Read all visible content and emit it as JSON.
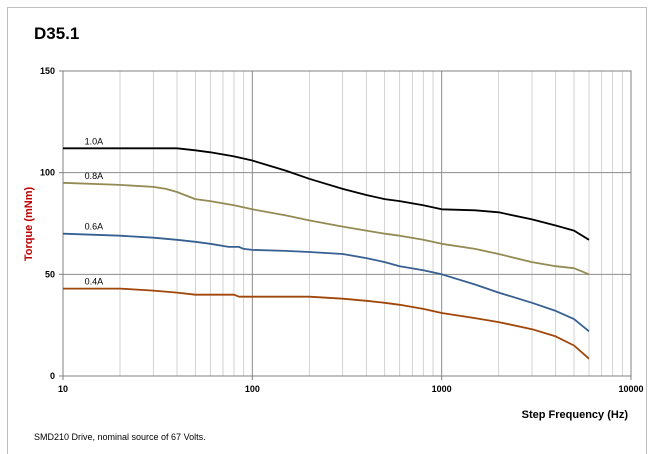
{
  "page_title": "D35.1",
  "footnote": "SMD210  Drive, nominal source of 67 Volts.",
  "chart_data": {
    "type": "line",
    "title": "",
    "xlabel": "Step Frequency (Hz)",
    "ylabel": "Torque (mNm)",
    "xscale": "log",
    "xlim": [
      10,
      10000
    ],
    "ylim": [
      0,
      150
    ],
    "x_ticks": [
      "10",
      "100",
      "1000",
      "10000"
    ],
    "y_ticks": [
      "0",
      "50",
      "100",
      "150"
    ],
    "grid": true,
    "legend": "none",
    "series": [
      {
        "name": "1.0A",
        "color": "#000000",
        "points": [
          [
            10,
            112
          ],
          [
            20,
            112
          ],
          [
            30,
            112
          ],
          [
            40,
            112
          ],
          [
            50,
            111
          ],
          [
            60,
            110
          ],
          [
            80,
            108
          ],
          [
            100,
            106
          ],
          [
            150,
            101
          ],
          [
            200,
            97
          ],
          [
            300,
            92
          ],
          [
            400,
            89
          ],
          [
            500,
            87
          ],
          [
            600,
            86
          ],
          [
            800,
            84
          ],
          [
            1000,
            82
          ],
          [
            1500,
            81.5
          ],
          [
            2000,
            80.5
          ],
          [
            3000,
            77
          ],
          [
            4000,
            74
          ],
          [
            5000,
            71.5
          ],
          [
            6000,
            67
          ]
        ]
      },
      {
        "name": "0.8A",
        "color": "#948a54",
        "points": [
          [
            10,
            95
          ],
          [
            20,
            94
          ],
          [
            30,
            93
          ],
          [
            35,
            92
          ],
          [
            40,
            90.5
          ],
          [
            50,
            87
          ],
          [
            60,
            86
          ],
          [
            80,
            84
          ],
          [
            100,
            82
          ],
          [
            150,
            79
          ],
          [
            200,
            76.5
          ],
          [
            300,
            73.5
          ],
          [
            400,
            71.5
          ],
          [
            500,
            70
          ],
          [
            600,
            69
          ],
          [
            800,
            67
          ],
          [
            1000,
            65
          ],
          [
            1500,
            62.5
          ],
          [
            2000,
            60
          ],
          [
            3000,
            56
          ],
          [
            4000,
            54
          ],
          [
            5000,
            53
          ],
          [
            6000,
            50
          ]
        ]
      },
      {
        "name": "0.6A",
        "color": "#376092",
        "points": [
          [
            10,
            70
          ],
          [
            20,
            69
          ],
          [
            30,
            68
          ],
          [
            40,
            67
          ],
          [
            50,
            66
          ],
          [
            60,
            65
          ],
          [
            75,
            63.5
          ],
          [
            85,
            63.5
          ],
          [
            90,
            62.5
          ],
          [
            100,
            62
          ],
          [
            150,
            61.5
          ],
          [
            200,
            61
          ],
          [
            300,
            60
          ],
          [
            400,
            58
          ],
          [
            500,
            56
          ],
          [
            600,
            54
          ],
          [
            800,
            52
          ],
          [
            1000,
            50
          ],
          [
            1500,
            45
          ],
          [
            2000,
            41
          ],
          [
            3000,
            36
          ],
          [
            4000,
            32
          ],
          [
            5000,
            28
          ],
          [
            6000,
            22
          ]
        ]
      },
      {
        "name": "0.4A",
        "color": "#a04608",
        "points": [
          [
            10,
            43
          ],
          [
            20,
            43
          ],
          [
            30,
            42
          ],
          [
            40,
            41
          ],
          [
            50,
            40
          ],
          [
            60,
            40
          ],
          [
            80,
            40
          ],
          [
            85,
            39
          ],
          [
            100,
            39
          ],
          [
            150,
            39
          ],
          [
            200,
            39
          ],
          [
            300,
            38
          ],
          [
            400,
            37
          ],
          [
            500,
            36
          ],
          [
            600,
            35
          ],
          [
            800,
            33
          ],
          [
            1000,
            31
          ],
          [
            1500,
            28.5
          ],
          [
            2000,
            26.5
          ],
          [
            3000,
            23
          ],
          [
            4000,
            19.5
          ],
          [
            5000,
            15
          ],
          [
            6000,
            8.5
          ]
        ]
      }
    ]
  }
}
